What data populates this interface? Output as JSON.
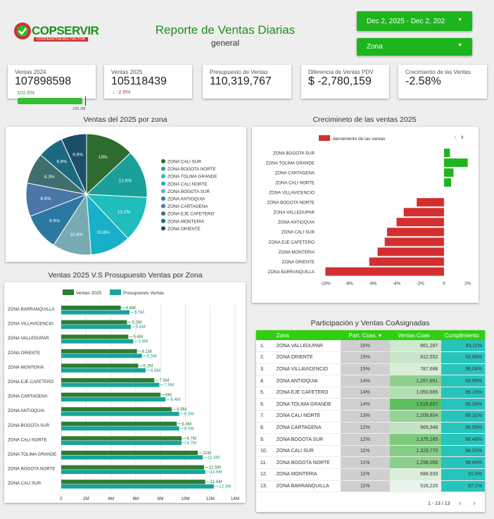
{
  "header": {
    "logo_text": "COPSERVIR",
    "logo_subtext": "COOPERATIVA MULTIACTIVA",
    "title": "Reporte de Ventas Diarias",
    "subtitle": "general",
    "date_range": "Dec 2, 2025 - Dec 2, 202",
    "zone_filter": "Zona"
  },
  "kpis": {
    "ventas_2024": {
      "label": "Ventas 2024",
      "value": "107898598",
      "sub": "102.6%",
      "bar_label": "105.1M",
      "progress": 0.95
    },
    "ventas_2025": {
      "label": "Ventas 2025",
      "value": "105118439",
      "sub": "↓ -2.6%"
    },
    "presupuesto": {
      "label": "Presupuesto de Ventas",
      "value": "110,319,767"
    },
    "diferencia": {
      "label": "Diferencia de Ventas PDV",
      "value": "$ -2,780,159"
    },
    "crecimiento": {
      "label": "Crecimiento de las Ventas",
      "value": "-2.58%"
    }
  },
  "pie_section": {
    "title": "Ventas del 2025 por zona"
  },
  "growth_section": {
    "title": "Crecimineto de las ventas 2025",
    "legend": "decremento de las ventas"
  },
  "budget_section": {
    "title": "Ventas 2025 V.S Prosupuesto Ventas por Zona",
    "legend_a": "Ventas 2025",
    "legend_b": "Prosupuesto Ventas"
  },
  "table_section": {
    "title": "Participación y Ventas CoAsignadas",
    "headers": {
      "zona": "Zona",
      "part": "Part. Coas. ▾",
      "ventas": "Ventas Coas",
      "cumplimiento": "Cumplimiento"
    },
    "rows": [
      {
        "idx": "1.",
        "zona": "ZONA VALLEDUPAR",
        "part": "16%",
        "ventas": "881,287",
        "cum": "93.11%"
      },
      {
        "idx": "2.",
        "zona": "ZONA ORIENTE",
        "part": "15%",
        "ventas": "912,552",
        "cum": "93.66%"
      },
      {
        "idx": "3.",
        "zona": "ZONA VILLAVICENCIO",
        "part": "15%",
        "ventas": "787,698",
        "cum": "96.04%"
      },
      {
        "idx": "4.",
        "zona": "ZONA ANTIOQUIA",
        "part": "14%",
        "ventas": "1,257,891",
        "cum": "93.69%"
      },
      {
        "idx": "5.",
        "zona": "ZONA EJE CAFETERO",
        "part": "14%",
        "ventas": "1,050,665",
        "cum": "95.26%"
      },
      {
        "idx": "6.",
        "zona": "ZONA TOLIMA GRANDE",
        "part": "14%",
        "ventas": "1,516,837",
        "cum": "96.34%"
      },
      {
        "idx": "7.",
        "zona": "ZONA CALI NORTE",
        "part": "13%",
        "ventas": "1,209,804",
        "cum": "99.31%"
      },
      {
        "idx": "8.",
        "zona": "ZONA CARTAGENA",
        "part": "12%",
        "ventas": "969,348",
        "cum": "95.55%"
      },
      {
        "idx": "9.",
        "zona": "ZONA BOGOTA SUR",
        "part": "12%",
        "ventas": "1,375,165",
        "cum": "98.48%"
      },
      {
        "idx": "10.",
        "zona": "ZONA CALI SUR",
        "part": "11%",
        "ventas": "1,323,770",
        "cum": "94.01%"
      },
      {
        "idx": "11.",
        "zona": "ZONA BOGOTA NORTE",
        "part": "11%",
        "ventas": "1,298,050",
        "cum": "98.64%"
      },
      {
        "idx": "12.",
        "zona": "ZONA MONTERIA",
        "part": "11%",
        "ventas": "688,933",
        "cum": "91.5%"
      },
      {
        "idx": "13.",
        "zona": "ZONA BARRANQUILLA",
        "part": "11%",
        "ventas": "516,220",
        "cum": "87.1%"
      }
    ],
    "pagination": "1 - 13 / 13"
  },
  "chart_data": [
    {
      "type": "pie",
      "title": "Ventas del 2025 por zona",
      "labels": [
        "ZONA CALI SUR",
        "ZONA BOGOTA NORTE",
        "ZONA TOLIMA GRANDE",
        "ZONA CALI NORTE",
        "ZONA BOGOTA SUR",
        "ZONA ANTIOQUIA",
        "ZONA CARTAGENA",
        "ZONA EJE CAFETERO",
        "ZONA MONTERIA",
        "ZONA ORIENTE"
      ],
      "values": [
        13,
        12.8,
        12.2,
        10.8,
        10.4,
        9.9,
        8.9,
        8.3,
        6.9,
        6.8
      ],
      "value_labels": [
        "13%",
        "12.8%",
        "12.2%",
        "10.8%",
        "10.4%",
        "9.9%",
        "8.9%",
        "8.3%",
        "6.9%",
        "6.8%"
      ],
      "colors": [
        "#2e6b30",
        "#1aa098",
        "#20bdbd",
        "#18b0c9",
        "#78aab3",
        "#2b78a3",
        "#4b77a8",
        "#3e6f6f",
        "#1d6a80",
        "#1b4e6b"
      ]
    },
    {
      "type": "bar",
      "orientation": "horizontal",
      "title": "Crecimineto de las ventas 2025",
      "series_name": "decremento de las ventas",
      "categories": [
        "ZONA BOGOTA SUR",
        "ZONA TOLIMA GRANDE",
        "ZONA CARTAGENA",
        "ZONA CALI NORTE",
        "ZONA VILLAVICENCIO",
        "ZONA BOGOTA NORTE",
        "ZONA VALLEDUPAR",
        "ZONA ANTIOQUIA",
        "ZONA CALI SUR",
        "ZONA EJE CAFETERO",
        "ZONA MONTERIA",
        "ZONA ORIENTE",
        "ZONA BARRANQUILLA"
      ],
      "values": [
        0.5,
        2.0,
        0.8,
        0.6,
        0.0,
        -2.3,
        -3.4,
        -4.0,
        -4.8,
        -5.0,
        -5.6,
        -6.3,
        -10.0
      ],
      "xlim": [
        -10.5,
        2.2
      ],
      "xticks": [
        -10,
        -8,
        -6,
        -4,
        -2,
        0,
        2
      ],
      "xtick_labels": [
        "-10%",
        "-8%",
        "-6%",
        "-4%",
        "-2%",
        "0",
        "2%"
      ],
      "positive_color": "#1fb51f",
      "negative_color": "#d32f2f"
    },
    {
      "type": "bar",
      "orientation": "horizontal",
      "title": "Ventas 2025 V.S Prosupuesto Ventas por Zona",
      "categories": [
        "ZONA BARRANQUILLA",
        "ZONA VILLAVICENCIO",
        "ZONA VALLEDUPAR",
        "ZONA ORIENTE",
        "ZONA MONTERIA",
        "ZONA EJE CAFETERO",
        "ZONA CARTAGENA",
        "ZONA ANTIOQUIA",
        "ZONA BOGOTA SUR",
        "ZONA CALI NORTE",
        "ZONA TOLIMA GRANDE",
        "ZONA BOGOTA NORTE",
        "ZONA CALI SUR"
      ],
      "series": [
        {
          "name": "Ventas 2025",
          "color": "#2e7d32",
          "values": [
            4.8,
            5.3,
            5.4,
            6.1,
            6.2,
            7.5,
            8,
            8.9,
            9.3,
            9.7,
            11,
            11.5,
            11.6
          ],
          "labels": [
            "4.8M",
            "5.3M",
            "5.4M",
            "6.1M",
            "6.2M",
            "7.5M",
            "8M",
            "8.9M",
            "9.3M",
            "9.7M",
            "11M",
            "11.5M",
            "11.6M"
          ]
        },
        {
          "name": "Prosupuesto Ventas",
          "color": "#17a59b",
          "values": [
            5.5,
            5.6,
            5.8,
            6.5,
            6.8,
            7.9,
            8.4,
            9.5,
            9.5,
            9.7,
            11.4,
            11.6,
            12.3
          ],
          "labels": [
            "5.5M",
            "5.6M",
            "5.8M",
            "6.5M",
            "6.8M",
            "7.9M",
            "8.4M",
            "9.5M",
            "9.5M",
            "9.7M",
            "11.4M",
            "11.6M",
            "12.3M"
          ]
        }
      ],
      "xlim": [
        0,
        14
      ],
      "xticks": [
        0,
        2,
        4,
        6,
        8,
        10,
        12,
        14
      ],
      "xtick_labels": [
        "0",
        "2M",
        "4M",
        "6M",
        "8M",
        "10M",
        "12M",
        "14M"
      ]
    }
  ]
}
